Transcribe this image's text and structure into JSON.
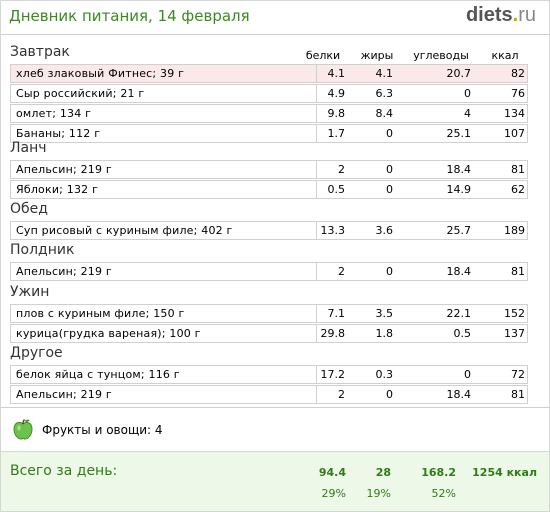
{
  "header": {
    "title": "Дневник питания, 14 февраля",
    "logo_main": "diets",
    "logo_dot": ".",
    "logo_tld": "ru"
  },
  "columns": {
    "protein": "белки",
    "fat": "жиры",
    "carbs": "углеводы",
    "kcal": "ккал"
  },
  "meals": [
    {
      "name": "Завтрак",
      "items": [
        {
          "name": "хлеб злаковый Фитнес; 39 г",
          "protein": "4.1",
          "fat": "4.1",
          "carbs": "20.7",
          "kcal": "82"
        },
        {
          "name": "Сыр российский; 21 г",
          "protein": "4.9",
          "fat": "6.3",
          "carbs": "0",
          "kcal": "76"
        },
        {
          "name": "омлет; 134 г",
          "protein": "9.8",
          "fat": "8.4",
          "carbs": "4",
          "kcal": "134"
        },
        {
          "name": "Бананы; 112 г",
          "protein": "1.7",
          "fat": "0",
          "carbs": "25.1",
          "kcal": "107"
        }
      ]
    },
    {
      "name": "Ланч",
      "items": [
        {
          "name": "Апельсин; 219 г",
          "protein": "2",
          "fat": "0",
          "carbs": "18.4",
          "kcal": "81"
        },
        {
          "name": "Яблоки; 132 г",
          "protein": "0.5",
          "fat": "0",
          "carbs": "14.9",
          "kcal": "62"
        }
      ]
    },
    {
      "name": "Обед",
      "items": [
        {
          "name": "Суп рисовый с куриным филе; 402 г",
          "protein": "13.3",
          "fat": "3.6",
          "carbs": "25.7",
          "kcal": "189"
        }
      ]
    },
    {
      "name": "Полдник",
      "items": [
        {
          "name": "Апельсин; 219 г",
          "protein": "2",
          "fat": "0",
          "carbs": "18.4",
          "kcal": "81"
        }
      ]
    },
    {
      "name": "Ужин",
      "items": [
        {
          "name": "плов с куриным филе; 150 г",
          "protein": "7.1",
          "fat": "3.5",
          "carbs": "22.1",
          "kcal": "152"
        },
        {
          "name": "курица(грудка вареная); 100 г",
          "protein": "29.8",
          "fat": "1.8",
          "carbs": "0.5",
          "kcal": "137"
        }
      ]
    },
    {
      "name": "Другое",
      "items": [
        {
          "name": "белок яйца с тунцом; 116 г",
          "protein": "17.2",
          "fat": "0.3",
          "carbs": "0",
          "kcal": "72"
        },
        {
          "name": "Апельсин; 219 г",
          "protein": "2",
          "fat": "0",
          "carbs": "18.4",
          "kcal": "81"
        }
      ]
    }
  ],
  "fruits": {
    "icon": "green-apple-icon",
    "label": "Фрукты и овощи: 4"
  },
  "totals": {
    "label": "Всего за день:",
    "protein": "94.4",
    "fat": "28",
    "carbs": "168.2",
    "kcal": "1254 ккал",
    "protein_pct": "29%",
    "fat_pct": "19%",
    "carbs_pct": "52%"
  },
  "colors": {
    "title_green": "#3a8a1f",
    "logo_orange": "#f29200",
    "highlight_row": "#fbe8e8",
    "total_bg": "#edf8e8"
  }
}
